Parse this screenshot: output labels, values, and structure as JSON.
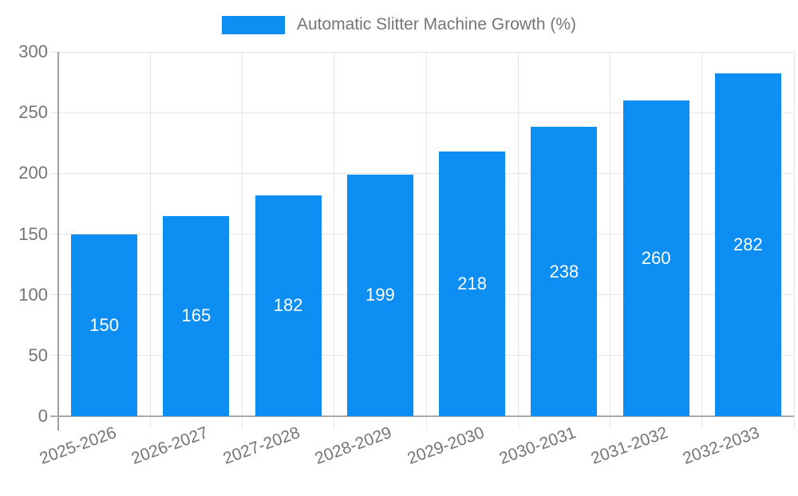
{
  "legend": {
    "position": "top-center"
  },
  "chart_data": {
    "type": "bar",
    "title": "",
    "series_name": "Automatic Slitter Machine Growth (%)",
    "categories": [
      "2025-2026",
      "2026-2027",
      "2027-2028",
      "2028-2029",
      "2029-2030",
      "2030-2031",
      "2031-2032",
      "2032-2033"
    ],
    "values": [
      150,
      165,
      182,
      199,
      218,
      238,
      260,
      282
    ],
    "xlabel": "",
    "ylabel": "",
    "ylim": [
      0,
      300
    ],
    "y_ticks": [
      0,
      50,
      100,
      150,
      200,
      250,
      300
    ],
    "grid": true,
    "legend_position": "top",
    "value_labels_position": "inside-center",
    "colors": {
      "bar": "#0d8ef2",
      "value_label_text": "#ffffff",
      "tick_text": "#757575",
      "legend_text": "#757575",
      "gridline": "#e6e6e6",
      "y_axis_line": "#9e9e9e",
      "x_axis_line": "#ababab",
      "background": "#ffffff"
    }
  }
}
